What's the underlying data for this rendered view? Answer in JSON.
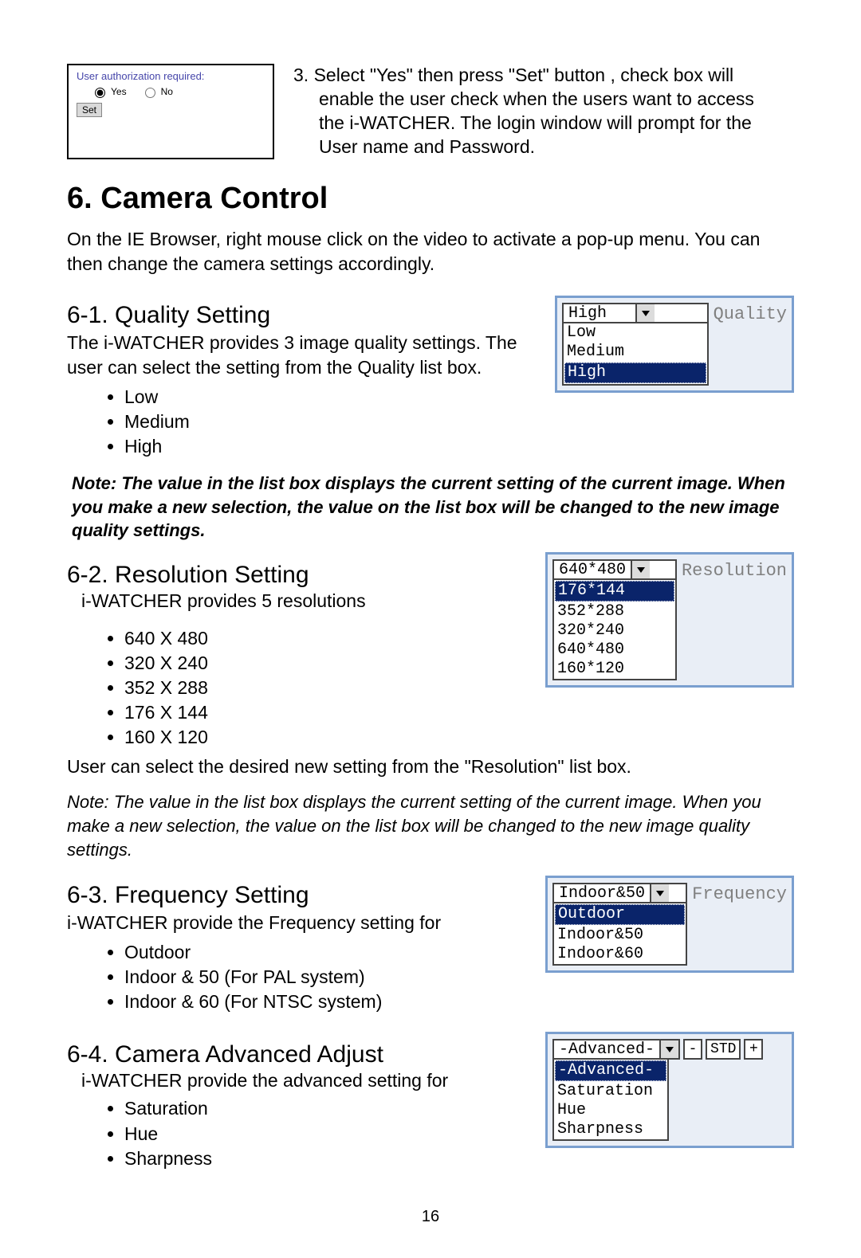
{
  "auth_box": {
    "title": "User authorization required:",
    "yes": "Yes",
    "no": "No",
    "set": "Set"
  },
  "step3": {
    "line1": "3. Select \"Yes\" then press \"Set\" button , check box will",
    "line2": "enable the user check when the users want to access",
    "line3": "the i-WATCHER. The login window will prompt for the",
    "line4": "User name and Password."
  },
  "h1": "6. Camera Control",
  "intro": "On the IE Browser, right mouse click on the video to activate a pop-up menu. You can then change the camera settings accordingly.",
  "s61": {
    "heading": "6-1. Quality Setting",
    "desc": "The i-WATCHER provides 3 image quality settings. The user can select the setting from the Quality list box.",
    "items": [
      "Low",
      "Medium",
      "High"
    ],
    "note": "Note: The value in the list box displays the current setting of the current image. When you make a new selection, the value on the list box will be changed to the new image quality settings.",
    "ui": {
      "label": "Quality",
      "selected": "High",
      "options": [
        "Low",
        "Medium",
        "High"
      ],
      "highlight_index": 2
    }
  },
  "s62": {
    "heading": "6-2. Resolution Setting",
    "desc": "i-WATCHER provides 5 resolutions",
    "items": [
      "640 X 480",
      "320 X 240",
      "352 X 288",
      "176 X 144",
      "160 X 120"
    ],
    "tail": "User can select the desired new setting from the \"Resolution\" list box.",
    "note": "Note: The value in the list box displays the current setting of the current image. When you make a new selection, the value on the list box will be changed to the new image quality settings.",
    "ui": {
      "label": "Resolution",
      "selected": "640*480",
      "options": [
        "176*144",
        "352*288",
        "320*240",
        "640*480",
        "160*120"
      ],
      "highlight_index": 0
    }
  },
  "s63": {
    "heading": "6-3. Frequency Setting",
    "desc": "i-WATCHER provide the Frequency setting for",
    "items": [
      "Outdoor",
      "Indoor & 50 (For PAL system)",
      "Indoor & 60 (For NTSC system)"
    ],
    "ui": {
      "label": "Frequency",
      "selected": "Indoor&50",
      "options": [
        "Outdoor",
        "Indoor&50",
        "Indoor&60"
      ],
      "highlight_index": 0
    }
  },
  "s64": {
    "heading": "6-4. Camera Advanced Adjust",
    "desc": "i-WATCHER provide the advanced setting for",
    "items": [
      "Saturation",
      "Hue",
      "Sharpness"
    ],
    "ui": {
      "selected": "-Advanced-",
      "options": [
        "-Advanced-",
        "Saturation",
        "Hue",
        "Sharpness"
      ],
      "highlight_index": 0,
      "minus": "-",
      "std": "STD",
      "plus": "+"
    }
  },
  "page_num": "16"
}
